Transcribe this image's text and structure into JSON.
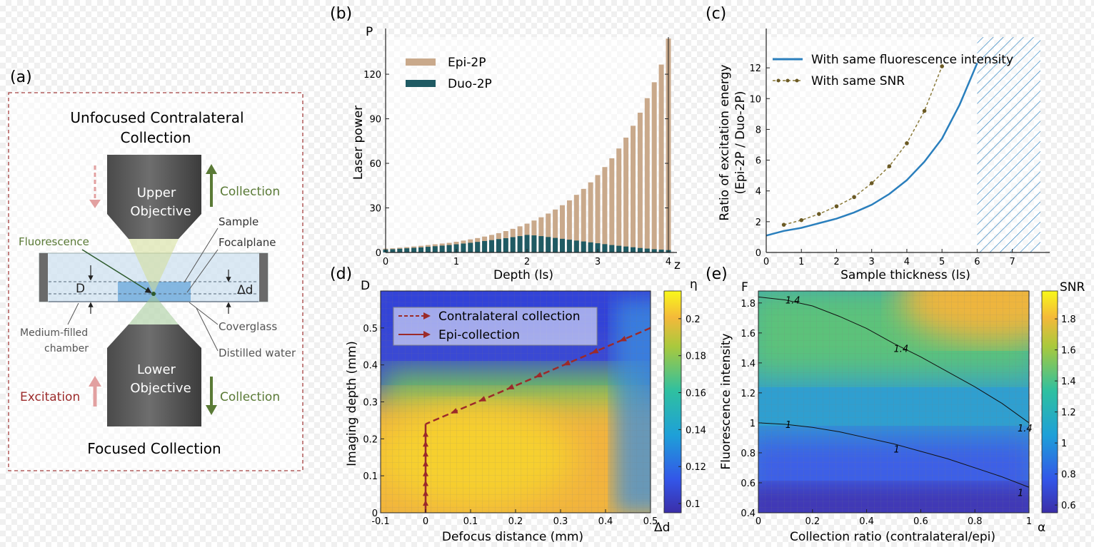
{
  "colors": {
    "epi": "#c9a98b",
    "duo": "#1f5a63",
    "blue_line": "#2a7fbd",
    "snr_line": "#8a7a3a",
    "contra_arrow": "#9b2a2a",
    "collection_green": "#5a7a36",
    "excitation_red": "#9b2a2a",
    "hatch": "#2a7fbd"
  },
  "panel_a": {
    "label": "(a)",
    "top_caption_line1": "Unfocused Contralateral",
    "top_caption_line2": "Collection",
    "upper_objective_line1": "Upper",
    "upper_objective_line2": "Objective",
    "collection_top": "Collection",
    "sample": "Sample",
    "focalplane": "Focalplane",
    "fluorescence": "Fluorescence",
    "D": "D",
    "delta_d": "Δd",
    "medium_line1": "Medium-filled",
    "medium_line2": "chamber",
    "coverglass": "Coverglass",
    "distilled_water": "Distilled water",
    "lower_objective_line1": "Lower",
    "lower_objective_line2": "Objective",
    "excitation": "Excitation",
    "collection_bottom": "Collection",
    "bottom_caption": "Focused Collection"
  },
  "chart_data": [
    {
      "panel": "(b)",
      "type": "bar",
      "xlabel": "Depth (ls)",
      "ylabel": "Laser power",
      "x_axis_end_label": "z",
      "y_axis_end_label": "P",
      "xticks": [
        0,
        1,
        2,
        3,
        4
      ],
      "yticks": [
        0,
        30,
        60,
        90,
        120
      ],
      "xlim": [
        0,
        4
      ],
      "ylim": [
        0,
        145
      ],
      "legend_position": "top-left",
      "x": [
        0.0,
        0.1,
        0.2,
        0.3,
        0.4,
        0.5,
        0.6,
        0.7,
        0.8,
        0.9,
        1.0,
        1.1,
        1.2,
        1.3,
        1.4,
        1.5,
        1.6,
        1.7,
        1.8,
        1.9,
        2.0,
        2.1,
        2.2,
        2.3,
        2.4,
        2.5,
        2.6,
        2.7,
        2.8,
        2.9,
        3.0,
        3.1,
        3.2,
        3.3,
        3.4,
        3.5,
        3.6,
        3.7,
        3.8,
        3.9,
        4.0
      ],
      "series": [
        {
          "name": "Epi-2P",
          "values": [
            2.6,
            2.8,
            3.2,
            3.6,
            4.0,
            4.5,
            5.0,
            5.5,
            6.0,
            6.5,
            7.2,
            8.0,
            8.8,
            9.7,
            10.7,
            11.8,
            13.0,
            14.4,
            15.9,
            17.6,
            19.4,
            21.5,
            23.7,
            26.2,
            28.9,
            31.8,
            35.1,
            38.8,
            42.8,
            47.2,
            52.1,
            57.5,
            63.4,
            70.0,
            77.3,
            85.3,
            94.1,
            103.9,
            114.6,
            126.5,
            144.0
          ]
        },
        {
          "name": "Duo-2P",
          "values": [
            2.0,
            2.2,
            2.5,
            2.8,
            3.1,
            3.4,
            3.8,
            4.2,
            4.6,
            5.0,
            5.5,
            6.0,
            6.5,
            7.1,
            7.7,
            8.3,
            9.0,
            9.6,
            10.3,
            11.0,
            11.8,
            11.5,
            11.0,
            10.4,
            9.8,
            9.2,
            8.6,
            8.0,
            7.4,
            6.8,
            6.2,
            5.6,
            5.0,
            4.5,
            4.0,
            3.5,
            3.0,
            2.6,
            2.2,
            1.9,
            1.6
          ]
        }
      ]
    },
    {
      "panel": "(c)",
      "type": "line",
      "xlabel": "Sample thickness (ls)",
      "ylabel_line1": "Ratio of excitation energy",
      "ylabel_line2": "(Epi-2P / Duo-2P)",
      "xticks": [
        0,
        1,
        2,
        3,
        4,
        5,
        6,
        7
      ],
      "yticks": [
        0,
        2,
        4,
        6,
        8,
        10,
        12
      ],
      "xlim": [
        0,
        7.8
      ],
      "ylim": [
        0,
        14
      ],
      "hatched_region_x": [
        6,
        7.8
      ],
      "legend_position": "top-left",
      "series": [
        {
          "name": "With same fluorescence intensity",
          "x": [
            0,
            0.5,
            1,
            1.5,
            2,
            2.5,
            3,
            3.5,
            4,
            4.5,
            5,
            5.5,
            6
          ],
          "y": [
            1.1,
            1.4,
            1.6,
            1.9,
            2.2,
            2.6,
            3.1,
            3.8,
            4.7,
            5.9,
            7.4,
            9.6,
            12.3
          ]
        },
        {
          "name": "With same SNR",
          "x": [
            0.5,
            1,
            1.5,
            2,
            2.5,
            3,
            3.5,
            4,
            4.5,
            5
          ],
          "y": [
            1.8,
            2.1,
            2.5,
            3.0,
            3.6,
            4.5,
            5.6,
            7.1,
            9.2,
            12.1
          ]
        }
      ]
    },
    {
      "panel": "(d)",
      "type": "heatmap",
      "xlabel": "Defocus distance (mm)",
      "ylabel": "Imaging depth (mm)",
      "x_axis_end_label": "Δd",
      "y_axis_end_label": "D",
      "colorbar_label": "η",
      "xticks": [
        -0.1,
        0,
        0.1,
        0.2,
        0.3,
        0.4,
        0.5
      ],
      "yticks": [
        0,
        0.1,
        0.2,
        0.3,
        0.4,
        0.5
      ],
      "colorbar_ticks": [
        0.1,
        0.12,
        0.14,
        0.16,
        0.18,
        0.2
      ],
      "xlim": [
        -0.1,
        0.5
      ],
      "ylim": [
        0,
        0.6
      ],
      "clim": [
        0.095,
        0.215
      ],
      "legend_position": "top-left",
      "series": [
        {
          "name": "Contralateral collection",
          "style": "dashed",
          "x": [
            0.0,
            0.5
          ],
          "y": [
            0.24,
            0.5
          ]
        },
        {
          "name": "Epi-collection",
          "style": "solid",
          "x": [
            0.0,
            0.0
          ],
          "y": [
            0.0,
            0.24
          ]
        }
      ]
    },
    {
      "panel": "(e)",
      "type": "heatmap",
      "xlabel": "Collection ratio (contralateral/epi)",
      "ylabel": "Fluorescence intensity",
      "x_axis_end_label": "α",
      "y_axis_end_label": "F",
      "colorbar_label": "SNR",
      "xticks": [
        0,
        0.2,
        0.4,
        0.6,
        0.8,
        1.0
      ],
      "yticks": [
        0.4,
        0.6,
        0.8,
        1,
        1.2,
        1.4,
        1.6,
        1.8
      ],
      "colorbar_ticks": [
        0.6,
        0.8,
        1,
        1.2,
        1.4,
        1.6,
        1.8
      ],
      "xlim": [
        0,
        1
      ],
      "ylim": [
        0.4,
        1.88
      ],
      "clim": [
        0.55,
        1.98
      ],
      "contours": [
        {
          "level": "1.4",
          "x": [
            0,
            0.1,
            0.2,
            0.3,
            0.4,
            0.5,
            0.6,
            0.7,
            0.8,
            0.9,
            1.0
          ],
          "y": [
            1.84,
            1.82,
            1.78,
            1.71,
            1.63,
            1.53,
            1.44,
            1.34,
            1.24,
            1.13,
            1.0
          ]
        },
        {
          "level": "1",
          "x": [
            0,
            0.1,
            0.2,
            0.3,
            0.4,
            0.5,
            0.6,
            0.7,
            0.8,
            0.9,
            1.0
          ],
          "y": [
            1.0,
            0.99,
            0.97,
            0.94,
            0.9,
            0.86,
            0.81,
            0.76,
            0.7,
            0.64,
            0.57
          ]
        }
      ]
    }
  ]
}
